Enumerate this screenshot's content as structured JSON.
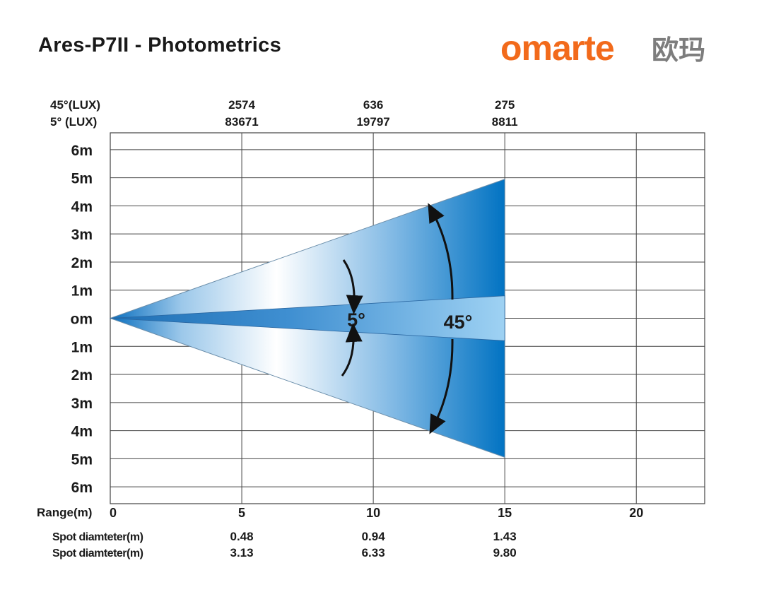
{
  "title": "Ares-P7II - Photometrics",
  "brand": {
    "latin": "omarte",
    "cjk": "欧玛",
    "latin_color": "#f26a1b",
    "cjk_color": "#7d7d7d"
  },
  "colors": {
    "beam_dark": "#0070c0",
    "beam_light": "#ffffff",
    "narrow_beam": "#3a8fd0",
    "grid": "#444444"
  },
  "lux_rows": [
    {
      "label": "45°(LUX)",
      "values": [
        "2574",
        "636",
        "275"
      ]
    },
    {
      "label": "5°  (LUX)",
      "values": [
        "83671",
        "19797",
        "8811"
      ]
    }
  ],
  "y_axis": {
    "labels": [
      "6m",
      "5m",
      "4m",
      "3m",
      "2m",
      "1m",
      "om",
      "1m",
      "2m",
      "3m",
      "4m",
      "5m",
      "6m"
    ],
    "values": [
      6,
      5,
      4,
      3,
      2,
      1,
      0,
      -1,
      -2,
      -3,
      -4,
      -5,
      -6
    ],
    "range": [
      -6.6,
      6.6
    ]
  },
  "x_axis": {
    "title": "Range(m)",
    "ticks": [
      0,
      5,
      10,
      15,
      20
    ],
    "tick_labels": [
      "0",
      "5",
      "10",
      "15",
      "20"
    ],
    "range": [
      0,
      22.6
    ]
  },
  "spot_rows": [
    {
      "label": "Spot diamteter(m)",
      "values": [
        "0.48",
        "0.94",
        "1.43"
      ]
    },
    {
      "label": "Spot diamteter(m)",
      "values": [
        "3.13",
        "6.33",
        "9.80"
      ]
    }
  ],
  "beams": {
    "wide": {
      "label": "45°",
      "length": 15,
      "half_width": 4.95
    },
    "narrow": {
      "label": "5°",
      "length": 15,
      "half_width": 0.8
    }
  }
}
